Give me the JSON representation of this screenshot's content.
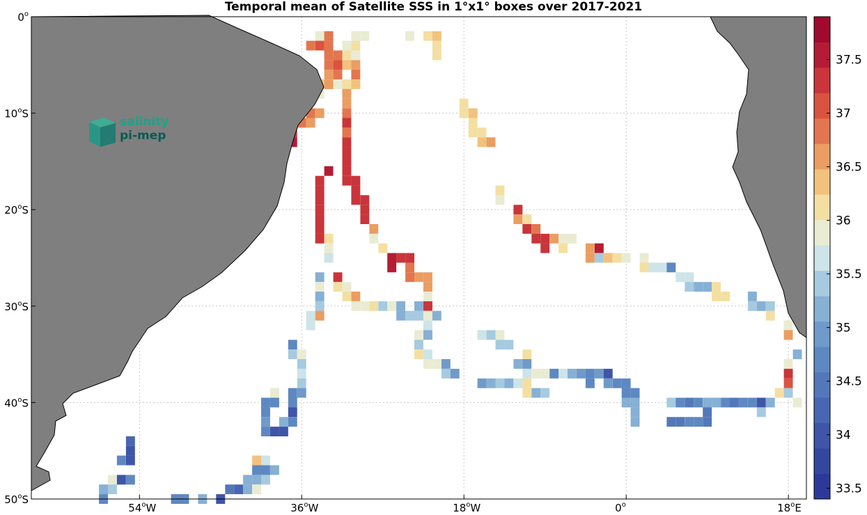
{
  "title": "Temporal mean of Satellite SSS in 1°x1° boxes over 2017-2021",
  "logo": {
    "line1": "salinity",
    "line2": "pi-mep"
  },
  "map": {
    "lon_range": [
      -66,
      20
    ],
    "lat_range": [
      -50,
      0
    ],
    "lon_ticks": [
      {
        "value": -54,
        "num": "54",
        "hemi": "W"
      },
      {
        "value": -36,
        "num": "36",
        "hemi": "W"
      },
      {
        "value": -18,
        "num": "18",
        "hemi": "W"
      },
      {
        "value": 0,
        "num": "0",
        "hemi": ""
      },
      {
        "value": 18,
        "num": "18",
        "hemi": "E"
      }
    ],
    "lat_ticks": [
      {
        "value": 0,
        "num": "0",
        "hemi": ""
      },
      {
        "value": -10,
        "num": "10",
        "hemi": "S"
      },
      {
        "value": -20,
        "num": "20",
        "hemi": "S"
      },
      {
        "value": -30,
        "num": "30",
        "hemi": "S"
      },
      {
        "value": -40,
        "num": "40",
        "hemi": "S"
      },
      {
        "value": -50,
        "num": "50",
        "hemi": "S"
      }
    ],
    "land_color": "#7f7f7f",
    "grid": "dotted"
  },
  "colorbar": {
    "min": 33.4,
    "max": 37.9,
    "ticks": [
      33.5,
      34,
      34.5,
      35,
      35.5,
      36,
      36.5,
      37,
      37.5
    ],
    "colors": [
      "#2b3a9a",
      "#34479f",
      "#3e55a8",
      "#4866b2",
      "#5378ba",
      "#5e88c1",
      "#6f9ac9",
      "#86b0d4",
      "#a6cadf",
      "#cde4e8",
      "#e9ecd2",
      "#f4dfa3",
      "#f2c27d",
      "#eb9d62",
      "#e3764f",
      "#d9533f",
      "#c9353a",
      "#b41c34",
      "#a00a2d"
    ]
  },
  "chart_data": {
    "type": "heatmap",
    "title": "Temporal mean of Satellite SSS in 1°x1° boxes over 2017-2021",
    "xlabel": "",
    "ylabel": "",
    "x_range_deg": [
      -66,
      20
    ],
    "y_range_deg": [
      -50,
      0
    ],
    "value_range": [
      33.4,
      37.9
    ],
    "cells": [
      [
        -34,
        -2,
        35.9
      ],
      [
        -33,
        -2,
        36.8
      ],
      [
        -30,
        -2,
        36.0
      ],
      [
        -29,
        -2,
        36.0
      ],
      [
        -24,
        -2,
        36.0
      ],
      [
        -22,
        -2,
        36.2
      ],
      [
        -21,
        -2,
        36.4
      ],
      [
        -35,
        -3,
        36.8
      ],
      [
        -34,
        -3,
        37.0
      ],
      [
        -33,
        -3,
        36.8
      ],
      [
        -31,
        -3,
        36.0
      ],
      [
        -30,
        -3,
        36.2
      ],
      [
        -21,
        -3,
        36.2
      ],
      [
        -33,
        -4,
        36.8
      ],
      [
        -32,
        -4,
        36.8
      ],
      [
        -31,
        -4,
        36.2
      ],
      [
        -30,
        -4,
        36.0
      ],
      [
        -21,
        -4,
        36.2
      ],
      [
        -33,
        -5,
        36.8
      ],
      [
        -32,
        -5,
        37.1
      ],
      [
        -31,
        -5,
        36.4
      ],
      [
        -30,
        -5,
        36.6
      ],
      [
        -33,
        -6,
        36.6
      ],
      [
        -32,
        -6,
        36.8
      ],
      [
        -30,
        -6,
        36.8
      ],
      [
        -34,
        -7,
        36.4
      ],
      [
        -33,
        -7,
        36.6
      ],
      [
        -32,
        -7,
        36.0
      ],
      [
        -31,
        -7,
        36.2
      ],
      [
        -30,
        -7,
        36.4
      ],
      [
        -34,
        -8,
        35.9
      ],
      [
        -31,
        -8,
        36.6
      ],
      [
        -31,
        -9,
        36.6
      ],
      [
        -18,
        -9,
        36.2
      ],
      [
        -35,
        -10,
        36.8
      ],
      [
        -34,
        -10,
        36.6
      ],
      [
        -31,
        -10,
        36.8
      ],
      [
        -18,
        -10,
        36.2
      ],
      [
        -17,
        -10,
        36.4
      ],
      [
        -37,
        -11,
        37.0
      ],
      [
        -36,
        -11,
        36.8
      ],
      [
        -35,
        -11,
        36.6
      ],
      [
        -31,
        -11,
        37.2
      ],
      [
        -17,
        -11,
        36.2
      ],
      [
        -37,
        -12,
        37.4
      ],
      [
        -31,
        -12,
        36.8
      ],
      [
        -17,
        -12,
        36.2
      ],
      [
        -16,
        -12,
        36.2
      ],
      [
        -38,
        -13,
        37.6
      ],
      [
        -37,
        -13,
        37.6
      ],
      [
        -31,
        -13,
        37.2
      ],
      [
        -16,
        -13,
        36.4
      ],
      [
        -15,
        -13,
        36.6
      ],
      [
        -31,
        -14,
        37.2
      ],
      [
        -31,
        -15,
        37.2
      ],
      [
        -33,
        -16,
        37.6
      ],
      [
        -31,
        -16,
        37.2
      ],
      [
        -34,
        -17,
        37.2
      ],
      [
        -31,
        -17,
        37.4
      ],
      [
        -30,
        -17,
        37.2
      ],
      [
        -34,
        -18,
        37.2
      ],
      [
        -30,
        -18,
        37.2
      ],
      [
        -14,
        -18,
        36.2
      ],
      [
        -34,
        -19,
        37.2
      ],
      [
        -30,
        -19,
        37.2
      ],
      [
        -29,
        -19,
        37.4
      ],
      [
        -14,
        -19,
        36.0
      ],
      [
        -34,
        -20,
        37.2
      ],
      [
        -29,
        -20,
        37.4
      ],
      [
        -12,
        -20,
        37.4
      ],
      [
        -34,
        -21,
        37.2
      ],
      [
        -29,
        -21,
        37.2
      ],
      [
        -12,
        -21,
        36.6
      ],
      [
        -11,
        -21,
        36.2
      ],
      [
        -34,
        -22,
        37.2
      ],
      [
        -28,
        -22,
        36.6
      ],
      [
        -11,
        -22,
        37.2
      ],
      [
        -10,
        -22,
        36.8
      ],
      [
        -34,
        -23,
        37.4
      ],
      [
        -33,
        -23,
        36.2
      ],
      [
        -28,
        -23,
        36.0
      ],
      [
        -10,
        -23,
        37.4
      ],
      [
        -9,
        -23,
        37.4
      ],
      [
        -8,
        -23,
        36.6
      ],
      [
        -7,
        -23,
        36.0
      ],
      [
        -6,
        -23,
        36.0
      ],
      [
        -33,
        -24,
        35.9
      ],
      [
        -27,
        -24,
        36.2
      ],
      [
        -9,
        -24,
        37.4
      ],
      [
        -7,
        -24,
        36.2
      ],
      [
        -4,
        -24,
        36.6
      ],
      [
        -3,
        -24,
        37.6
      ],
      [
        -33,
        -25,
        35.6
      ],
      [
        -26,
        -25,
        37.6
      ],
      [
        -25,
        -25,
        37.2
      ],
      [
        -24,
        -25,
        37.2
      ],
      [
        -4,
        -25,
        36.6
      ],
      [
        -3,
        -25,
        35.5
      ],
      [
        -2,
        -25,
        36.4
      ],
      [
        -1,
        -25,
        36.2
      ],
      [
        0,
        -25,
        36.0
      ],
      [
        2,
        -25,
        35.8
      ],
      [
        -26,
        -26,
        37.6
      ],
      [
        -24,
        -26,
        36.8
      ],
      [
        2,
        -26,
        36.2
      ],
      [
        3,
        -26,
        35.6
      ],
      [
        4,
        -26,
        35.6
      ],
      [
        5,
        -26,
        34.6
      ],
      [
        -34,
        -27,
        35.2
      ],
      [
        -32,
        -27,
        37.2
      ],
      [
        -24,
        -27,
        36.8
      ],
      [
        -23,
        -27,
        36.6
      ],
      [
        -22,
        -27,
        36.6
      ],
      [
        6,
        -27,
        35.6
      ],
      [
        7,
        -27,
        35.6
      ],
      [
        -34,
        -28,
        36.0
      ],
      [
        -32,
        -28,
        36.2
      ],
      [
        -31,
        -28,
        36.0
      ],
      [
        -22,
        -28,
        36.6
      ],
      [
        7,
        -28,
        35.4
      ],
      [
        8,
        -28,
        35.2
      ],
      [
        9,
        -28,
        35.2
      ],
      [
        10,
        -28,
        36.2
      ],
      [
        -34,
        -29,
        35.2
      ],
      [
        -31,
        -29,
        36.2
      ],
      [
        -30,
        -29,
        36.6
      ],
      [
        -22,
        -29,
        35.9
      ],
      [
        10,
        -29,
        36.2
      ],
      [
        11,
        -29,
        36.2
      ],
      [
        14,
        -29,
        35.2
      ],
      [
        -34,
        -30,
        35.4
      ],
      [
        -30,
        -30,
        35.8
      ],
      [
        -29,
        -30,
        35.9
      ],
      [
        -28,
        -30,
        36.2
      ],
      [
        -27,
        -30,
        35.4
      ],
      [
        -26,
        -30,
        36.0
      ],
      [
        -25,
        -30,
        35.2
      ],
      [
        -23,
        -30,
        35.2
      ],
      [
        -22,
        -30,
        37.2
      ],
      [
        14,
        -30,
        35.4
      ],
      [
        15,
        -30,
        35.2
      ],
      [
        16,
        -30,
        35.4
      ],
      [
        -35,
        -31,
        35.6
      ],
      [
        -34,
        -31,
        36.6
      ],
      [
        -25,
        -31,
        35.2
      ],
      [
        -24,
        -31,
        35.4
      ],
      [
        -23,
        -31,
        35.4
      ],
      [
        -22,
        -31,
        35.9
      ],
      [
        -21,
        -31,
        35.2
      ],
      [
        16,
        -31,
        36.2
      ],
      [
        -35,
        -32,
        35.6
      ],
      [
        -22,
        -32,
        35.6
      ],
      [
        18,
        -32,
        36.0
      ],
      [
        -23,
        -33,
        36.0
      ],
      [
        -22,
        -33,
        35.2
      ],
      [
        -16,
        -33,
        35.6
      ],
      [
        -15,
        -33,
        35.4
      ],
      [
        -14,
        -33,
        35.9
      ],
      [
        18,
        -33,
        36.6
      ],
      [
        -37,
        -34,
        34.6
      ],
      [
        -23,
        -34,
        35.4
      ],
      [
        -14,
        -34,
        35.4
      ],
      [
        -13,
        -34,
        35.4
      ],
      [
        -37,
        -35,
        35.4
      ],
      [
        -36,
        -35,
        36.0
      ],
      [
        -23,
        -35,
        36.2
      ],
      [
        -22,
        -35,
        35.6
      ],
      [
        -11,
        -35,
        36.2
      ],
      [
        19,
        -35,
        35.2
      ],
      [
        -36,
        -36,
        35.4
      ],
      [
        -22,
        -36,
        35.8
      ],
      [
        -21,
        -36,
        35.9
      ],
      [
        -20,
        -36,
        35.0
      ],
      [
        -12,
        -36,
        35.2
      ],
      [
        -11,
        -36,
        35.0
      ],
      [
        18,
        -36,
        35.9
      ],
      [
        -36,
        -37,
        35.6
      ],
      [
        -20,
        -37,
        35.4
      ],
      [
        -19,
        -37,
        35.0
      ],
      [
        -11,
        -37,
        35.6
      ],
      [
        -10,
        -37,
        35.8
      ],
      [
        -9,
        -37,
        35.8
      ],
      [
        -8,
        -37,
        34.8
      ],
      [
        -7,
        -37,
        35.6
      ],
      [
        -6,
        -37,
        35.2
      ],
      [
        -5,
        -37,
        35.0
      ],
      [
        -4,
        -37,
        34.6
      ],
      [
        -3,
        -37,
        35.0
      ],
      [
        -2,
        -37,
        33.9
      ],
      [
        18,
        -37,
        37.2
      ],
      [
        -36,
        -38,
        35.4
      ],
      [
        -16,
        -38,
        35.0
      ],
      [
        -15,
        -38,
        35.2
      ],
      [
        -14,
        -38,
        35.4
      ],
      [
        -13,
        -38,
        35.2
      ],
      [
        -12,
        -38,
        35.6
      ],
      [
        -11,
        -38,
        36.2
      ],
      [
        -4,
        -38,
        34.6
      ],
      [
        -2,
        -38,
        35.0
      ],
      [
        -1,
        -38,
        34.6
      ],
      [
        0,
        -38,
        34.6
      ],
      [
        18,
        -38,
        37.0
      ],
      [
        -39,
        -39,
        35.8
      ],
      [
        -37,
        -39,
        34.8
      ],
      [
        -36,
        -39,
        35.0
      ],
      [
        -11,
        -39,
        36.2
      ],
      [
        -10,
        -39,
        35.2
      ],
      [
        -9,
        -39,
        35.4
      ],
      [
        0,
        -39,
        34.6
      ],
      [
        1,
        -39,
        34.8
      ],
      [
        17,
        -39,
        36.2
      ],
      [
        18,
        -39,
        35.4
      ],
      [
        -40,
        -40,
        34.8
      ],
      [
        -39,
        -40,
        34.8
      ],
      [
        -37,
        -40,
        34.6
      ],
      [
        0,
        -40,
        35.2
      ],
      [
        1,
        -40,
        35.2
      ],
      [
        5,
        -40,
        35.4
      ],
      [
        6,
        -40,
        34.8
      ],
      [
        7,
        -40,
        34.4
      ],
      [
        8,
        -40,
        34.8
      ],
      [
        9,
        -40,
        35.2
      ],
      [
        10,
        -40,
        35.2
      ],
      [
        11,
        -40,
        34.6
      ],
      [
        12,
        -40,
        34.4
      ],
      [
        13,
        -40,
        34.8
      ],
      [
        14,
        -40,
        34.8
      ],
      [
        15,
        -40,
        33.9
      ],
      [
        16,
        -40,
        35.2
      ],
      [
        19,
        -40,
        36.0
      ],
      [
        -40,
        -41,
        34.8
      ],
      [
        -37,
        -41,
        33.9
      ],
      [
        1,
        -41,
        35.2
      ],
      [
        9,
        -41,
        34.4
      ],
      [
        15,
        -41,
        35.4
      ],
      [
        -40,
        -42,
        35.0
      ],
      [
        -38,
        -42,
        35.2
      ],
      [
        -37,
        -42,
        34.6
      ],
      [
        1,
        -42,
        35.2
      ],
      [
        5,
        -42,
        34.4
      ],
      [
        6,
        -42,
        34.4
      ],
      [
        7,
        -42,
        34.8
      ],
      [
        8,
        -42,
        34.6
      ],
      [
        9,
        -42,
        34.4
      ],
      [
        -40,
        -43,
        34.6
      ],
      [
        -39,
        -43,
        34.0
      ],
      [
        -38,
        -43,
        34.0
      ],
      [
        -55,
        -44,
        34.2
      ],
      [
        -55,
        -45,
        34.0
      ],
      [
        -41,
        -46,
        36.4
      ],
      [
        -40,
        -46,
        35.6
      ],
      [
        -56,
        -46,
        34.6
      ],
      [
        -55,
        -46,
        34.0
      ],
      [
        -41,
        -47,
        34.8
      ],
      [
        -40,
        -47,
        34.6
      ],
      [
        -39,
        -47,
        35.2
      ],
      [
        -42,
        -48,
        35.2
      ],
      [
        -41,
        -48,
        35.2
      ],
      [
        -40,
        -48,
        35.4
      ],
      [
        -57,
        -48,
        36.0
      ],
      [
        -56,
        -48,
        33.9
      ],
      [
        -55,
        -48,
        34.6
      ],
      [
        -44,
        -49,
        34.4
      ],
      [
        -43,
        -49,
        34.2
      ],
      [
        -42,
        -49,
        35.2
      ],
      [
        -41,
        -49,
        35.9
      ],
      [
        -58,
        -49,
        35.2
      ],
      [
        -57,
        -49,
        35.4
      ],
      [
        -50,
        -50,
        34.8
      ],
      [
        -49,
        -50,
        34.8
      ],
      [
        -47,
        -50,
        35.2
      ],
      [
        -45,
        -50,
        34.0
      ],
      [
        -58,
        -50,
        34.6
      ]
    ]
  }
}
